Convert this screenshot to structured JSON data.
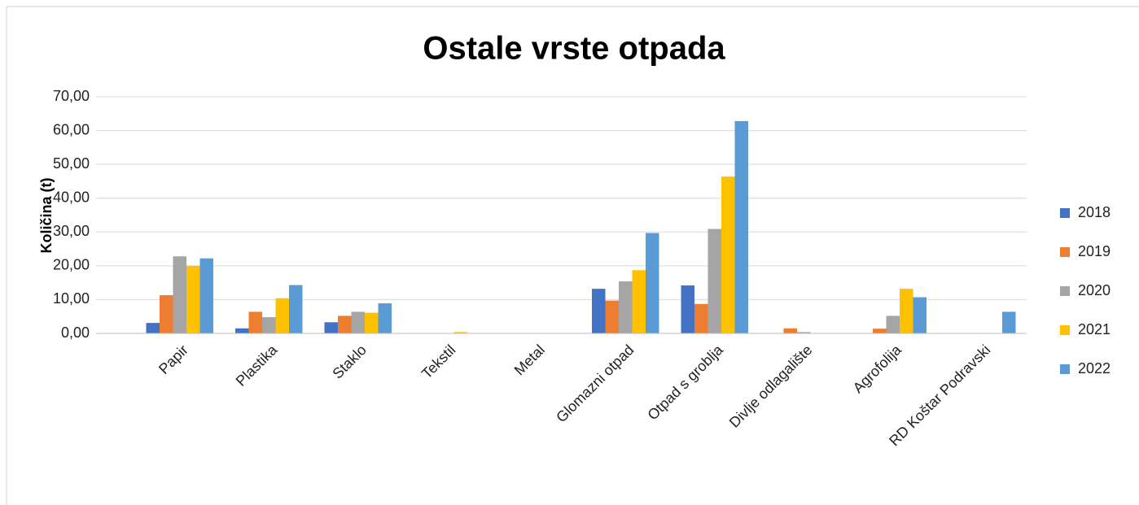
{
  "chart_data": {
    "type": "bar",
    "title": "Ostale vrste otpada",
    "y_label": "Količina (t)",
    "categories": [
      "Papir",
      "Plastika",
      "Staklo",
      "Tekstil",
      "Metal",
      "Glomazni otpad",
      "Otpad s groblja",
      "Divlje odlagalište",
      "Agrofolija",
      "RD Koštar Podravski"
    ],
    "series": [
      {
        "name": "2018",
        "color": "#4472c4",
        "values": [
          3.1,
          1.5,
          3.3,
          0,
          0,
          13.2,
          14.2,
          0,
          0,
          0
        ]
      },
      {
        "name": "2019",
        "color": "#ed7d31",
        "values": [
          11.3,
          6.4,
          5.2,
          0,
          0,
          9.7,
          8.7,
          1.5,
          1.4,
          0
        ]
      },
      {
        "name": "2020",
        "color": "#a5a5a5",
        "values": [
          22.8,
          4.8,
          6.4,
          0,
          0,
          15.4,
          30.9,
          0.4,
          5.2,
          0
        ]
      },
      {
        "name": "2021",
        "color": "#ffc000",
        "values": [
          20.0,
          10.4,
          6.1,
          0.4,
          0,
          18.7,
          46.4,
          0,
          13.2,
          0
        ]
      },
      {
        "name": "2022",
        "color": "#5b9bd5",
        "values": [
          22.2,
          14.3,
          8.9,
          0,
          0,
          29.7,
          62.8,
          0,
          10.7,
          6.4
        ]
      }
    ],
    "ylim": [
      0,
      70
    ],
    "yticks": [
      {
        "value": 0,
        "label": "0,00"
      },
      {
        "value": 10,
        "label": "10,00"
      },
      {
        "value": 20,
        "label": "20,00"
      },
      {
        "value": 30,
        "label": "30,00"
      },
      {
        "value": 40,
        "label": "40,00"
      },
      {
        "value": 50,
        "label": "50,00"
      },
      {
        "value": 60,
        "label": "60,00"
      },
      {
        "value": 70,
        "label": "70,00"
      }
    ],
    "grid": true,
    "legend": "right"
  }
}
